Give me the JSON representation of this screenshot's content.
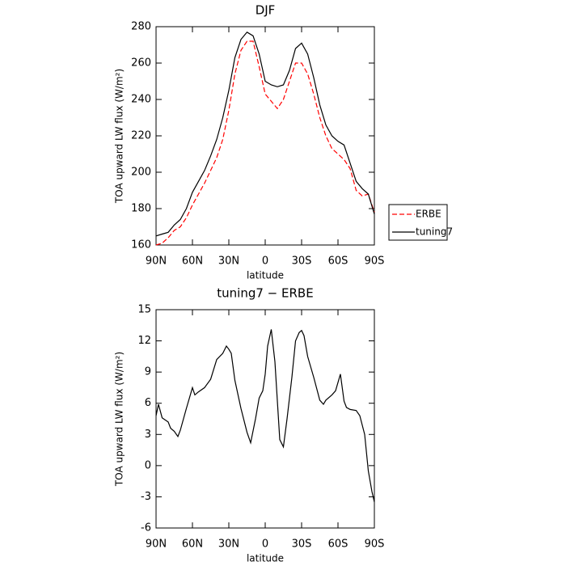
{
  "chart_data": [
    {
      "type": "line",
      "title": "DJF",
      "xlabel": "latitude",
      "ylabel": "TOA upward LW flux (W/m²)",
      "x": [
        90,
        85,
        80,
        75,
        70,
        65,
        60,
        55,
        50,
        45,
        40,
        35,
        30,
        25,
        20,
        15,
        10,
        5,
        0,
        -5,
        -10,
        -15,
        -20,
        -25,
        -30,
        -35,
        -40,
        -45,
        -50,
        -55,
        -60,
        -65,
        -70,
        -75,
        -80,
        -85,
        -90
      ],
      "series": [
        {
          "name": "ERBE",
          "color": "#ff0000",
          "dash": true,
          "values": [
            160,
            161,
            164,
            168,
            170,
            175,
            182,
            188,
            194,
            201,
            208,
            218,
            234,
            254,
            267,
            272,
            272,
            258,
            243,
            239,
            235,
            240,
            250,
            260,
            260,
            254,
            243,
            230,
            220,
            213,
            210,
            207,
            202,
            190,
            187,
            188,
            178
          ]
        },
        {
          "name": "tuning7",
          "color": "#000000",
          "dash": false,
          "values": [
            165,
            166,
            167,
            171,
            174,
            180,
            189,
            195,
            201,
            209,
            218,
            230,
            245,
            263,
            273,
            277,
            275,
            265,
            250,
            248,
            247,
            248,
            256,
            268,
            271,
            265,
            252,
            237,
            226,
            220,
            217,
            215,
            205,
            195,
            191,
            188,
            177
          ]
        }
      ],
      "xlim": [
        90,
        -90
      ],
      "xticks": [
        {
          "value": 90,
          "label": "90N"
        },
        {
          "value": 60,
          "label": "60N"
        },
        {
          "value": 30,
          "label": "30N"
        },
        0,
        {
          "value": -30,
          "label": "30S"
        },
        {
          "value": -60,
          "label": "60S"
        },
        {
          "value": -90,
          "label": "90S"
        }
      ],
      "ylim": [
        160,
        280
      ],
      "yticks": [
        160,
        180,
        200,
        220,
        240,
        260,
        280
      ],
      "legend": "right"
    },
    {
      "type": "line",
      "title": "tuning7 − ERBE",
      "xlabel": "latitude",
      "ylabel": "TOA upward LW flux (W/m²)",
      "x": [
        90,
        88,
        85,
        80,
        78,
        75,
        72,
        70,
        65,
        60,
        58,
        55,
        50,
        45,
        40,
        35,
        32,
        30,
        28,
        25,
        20,
        15,
        12,
        8,
        5,
        2,
        0,
        -2,
        -5,
        -8,
        -12,
        -15,
        -18,
        -22,
        -25,
        -28,
        -30,
        -32,
        -35,
        -40,
        -45,
        -48,
        -50,
        -55,
        -58,
        -62,
        -65,
        -67,
        -70,
        -75,
        -78,
        -82,
        -85,
        -88,
        -90
      ],
      "series": [
        {
          "color": "#000000",
          "dash": false,
          "values": [
            4.8,
            5.9,
            4.6,
            4.2,
            3.6,
            3.3,
            2.8,
            3.4,
            5.5,
            7.5,
            6.8,
            7.1,
            7.5,
            8.3,
            10.2,
            10.8,
            11.5,
            11.2,
            10.8,
            8.2,
            5.5,
            3.2,
            2.2,
            4.5,
            6.5,
            7.2,
            8.8,
            11.5,
            13.1,
            10.0,
            2.5,
            1.8,
            4.5,
            8.5,
            12.0,
            12.8,
            13.0,
            12.5,
            10.5,
            8.5,
            6.3,
            5.9,
            6.3,
            6.8,
            7.2,
            8.8,
            6.2,
            5.6,
            5.4,
            5.3,
            4.8,
            3.0,
            -0.5,
            -2.5,
            -3.5
          ]
        }
      ],
      "xlim": [
        90,
        -90
      ],
      "xticks": [
        {
          "value": 90,
          "label": "90N"
        },
        {
          "value": 60,
          "label": "60N"
        },
        {
          "value": 30,
          "label": "30N"
        },
        0,
        {
          "value": -30,
          "label": "30S"
        },
        {
          "value": -60,
          "label": "60S"
        },
        {
          "value": -90,
          "label": "90S"
        }
      ],
      "ylim": [
        -6,
        15
      ],
      "yticks": [
        -6,
        -3,
        0,
        3,
        6,
        9,
        12,
        15
      ]
    }
  ]
}
